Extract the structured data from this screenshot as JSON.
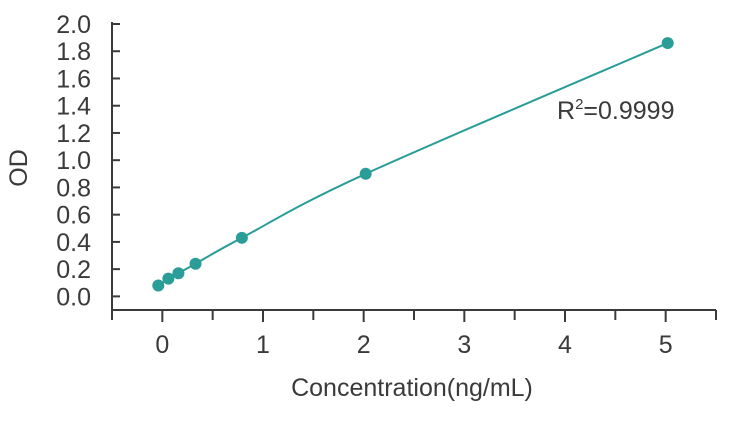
{
  "chart_data": {
    "type": "scatter",
    "title": "",
    "xlabel": "Concentration(ng/mL)",
    "ylabel": "OD",
    "xlim": [
      -0.5,
      5.5
    ],
    "ylim": [
      -0.1,
      2.0
    ],
    "x_ticks": [
      0,
      1,
      2,
      3,
      4,
      5
    ],
    "x_tick_labels": [
      "0",
      "1",
      "2",
      "3",
      "4",
      "5"
    ],
    "y_ticks": [
      0.0,
      0.2,
      0.4,
      0.6,
      0.8,
      1.0,
      1.2,
      1.4,
      1.6,
      1.8,
      2.0
    ],
    "y_tick_labels": [
      "0.0",
      "0.2",
      "0.4",
      "0.6",
      "0.8",
      "1.0",
      "1.2",
      "1.4",
      "1.6",
      "1.8",
      "2.0"
    ],
    "grid": false,
    "series": [
      {
        "x": [
          -0.04,
          0.06,
          0.16,
          0.33,
          0.79,
          2.02,
          5.02
        ],
        "y": [
          0.08,
          0.13,
          0.17,
          0.24,
          0.43,
          0.9,
          1.86
        ]
      }
    ],
    "annotation": {
      "base": "R",
      "sup": "2",
      "rest": "=0.9999"
    },
    "colors": {
      "series": "#2a9d98",
      "axis": "#3a3a3a"
    }
  }
}
